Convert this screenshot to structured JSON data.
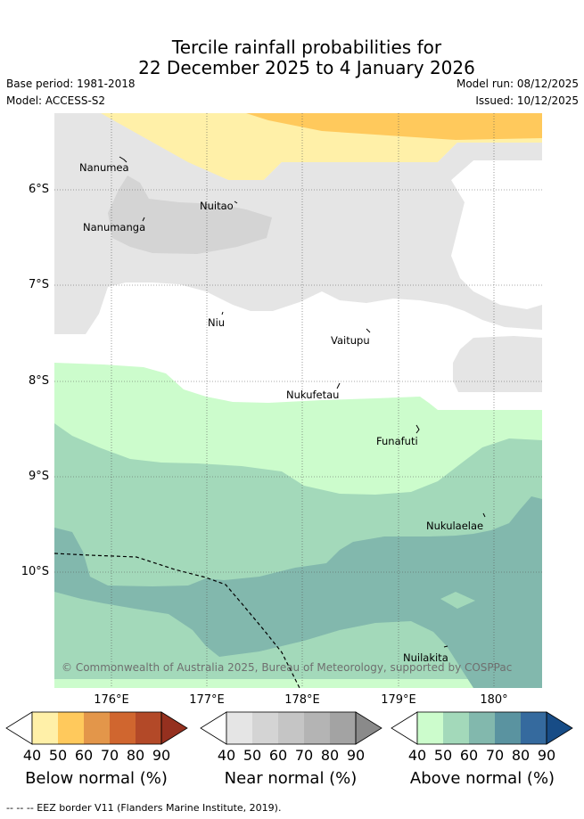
{
  "title": {
    "line1": "Tercile rainfall probabilities for",
    "line2": "22 December 2025 to 4 January 2026"
  },
  "meta": {
    "base_period": "Base period: 1981-2018",
    "model": "Model: ACCESS-S2",
    "model_run": "Model run: 08/12/2025",
    "issued": "Issued: 10/12/2025"
  },
  "map": {
    "lat_labels": [
      "6°S",
      "7°S",
      "8°S",
      "9°S",
      "10°S"
    ],
    "lon_labels": [
      "176°E",
      "177°E",
      "178°E",
      "179°E",
      "180°"
    ],
    "places": [
      {
        "name": "Nanumea"
      },
      {
        "name": "Nuitao"
      },
      {
        "name": "Nanumanga"
      },
      {
        "name": "Niu"
      },
      {
        "name": "Vaitupu"
      },
      {
        "name": "Nukufetau"
      },
      {
        "name": "Funafuti"
      },
      {
        "name": "Nukulaelae"
      },
      {
        "name": "Nuilakita"
      }
    ],
    "copyright": "© Commonwealth of Australia 2025, Bureau of Meteorology, supported by COSPPac"
  },
  "legend": {
    "scales": [
      {
        "title": "Below normal (%)",
        "ticks": [
          "40",
          "50",
          "60",
          "70",
          "80",
          "90"
        ],
        "colors": [
          "#fff0a8",
          "#ffc95c",
          "#e3964a",
          "#d0662f",
          "#b34928",
          "#95301f"
        ]
      },
      {
        "title": "Near normal (%)",
        "ticks": [
          "40",
          "50",
          "60",
          "70",
          "80",
          "90"
        ],
        "colors": [
          "#e5e5e5",
          "#d4d4d4",
          "#c5c5c5",
          "#b4b4b4",
          "#a3a3a3",
          "#8a8a8a"
        ]
      },
      {
        "title": "Above normal (%)",
        "ticks": [
          "40",
          "50",
          "60",
          "70",
          "80",
          "90"
        ],
        "colors": [
          "#ccfccc",
          "#a3d9ba",
          "#82b8ad",
          "#5a93a0",
          "#356a9e",
          "#174c86"
        ]
      }
    ],
    "eez_note": "--  --  -- EEZ border V11 (Flanders Marine Institute, 2019)."
  }
}
